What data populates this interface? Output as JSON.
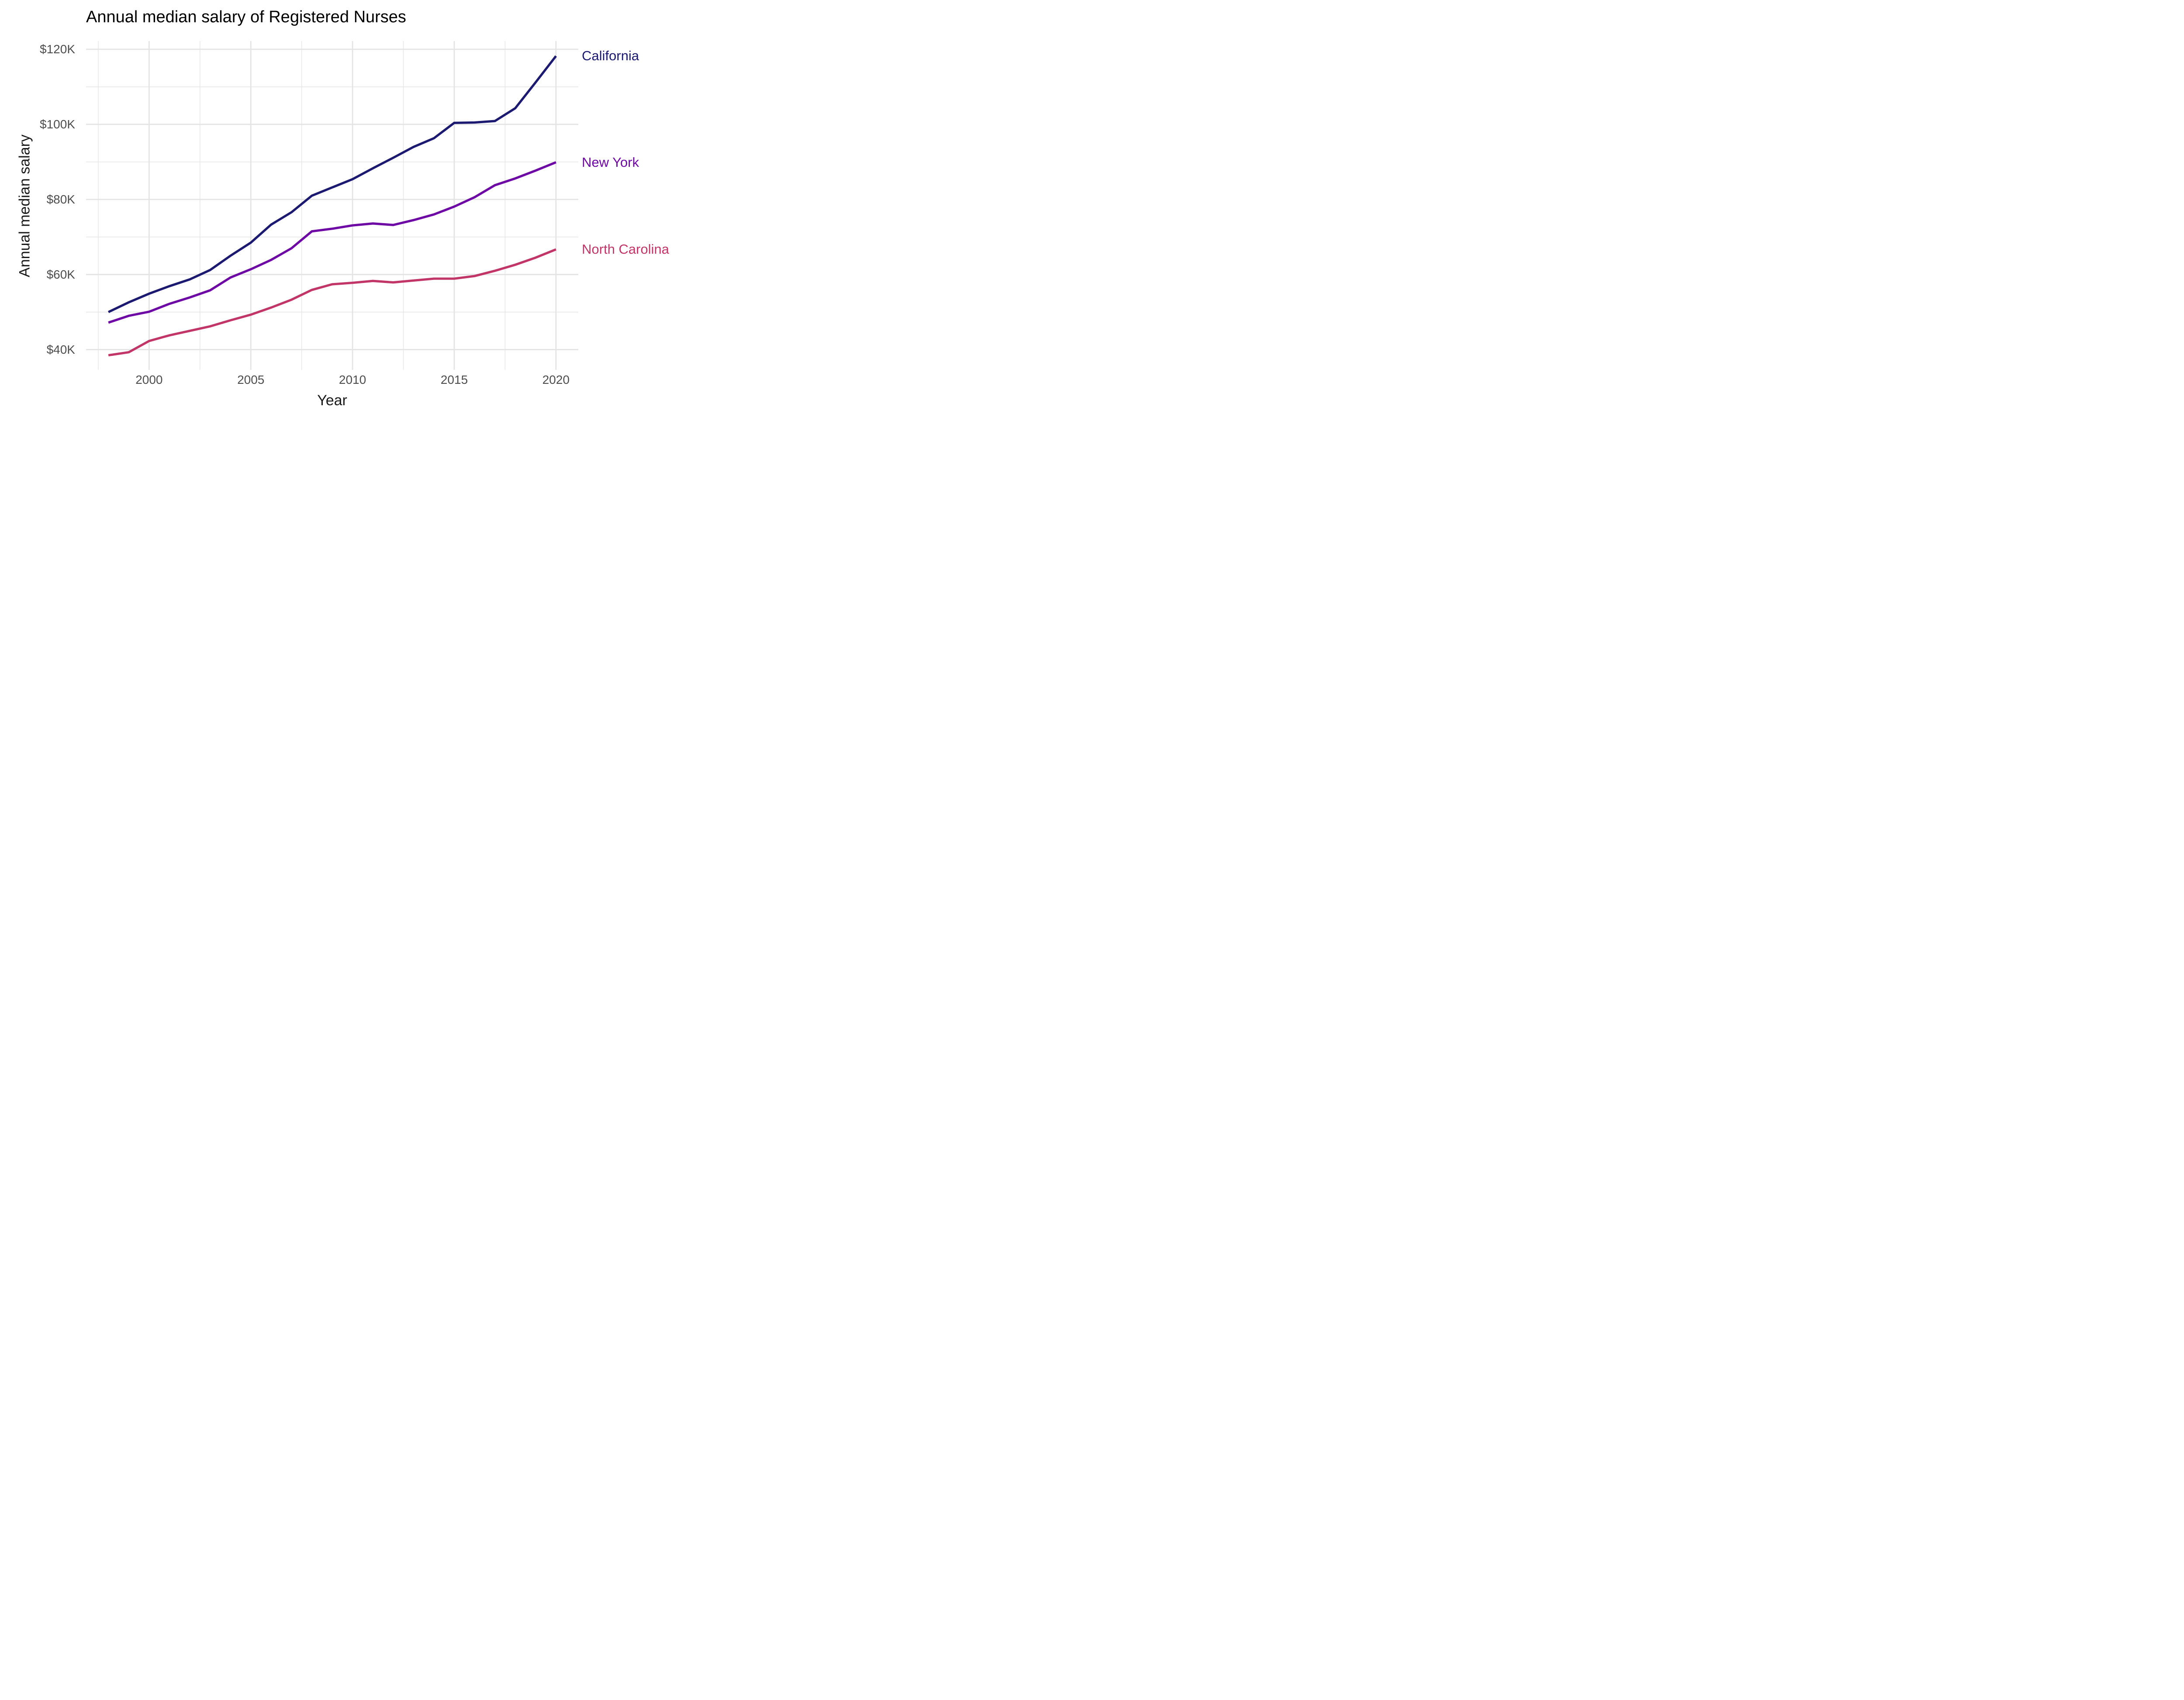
{
  "title": "Annual median salary of Registered Nurses",
  "colors": {
    "grid": "#e4e4e4",
    "tick_text": "#4d4d4d",
    "axis_title_text": "#1a1a1a",
    "title_text": "#000000"
  },
  "chart_data": {
    "type": "line",
    "title": "Annual median salary of Registered Nurses",
    "xlabel": "Year",
    "ylabel": "Annual median salary",
    "legend_position": "right-of-line-ends",
    "grid": true,
    "xlim": [
      1996.9,
      2021.1
    ],
    "ylim_thousands": [
      34.6,
      122.2
    ],
    "x_major_ticks": [
      2000,
      2005,
      2010,
      2015,
      2020
    ],
    "x_tick_labels": [
      "2000",
      "2005",
      "2010",
      "2015",
      "2020"
    ],
    "x_minor_gridlines": [
      1997.5,
      2002.5,
      2007.5,
      2012.5,
      2017.5
    ],
    "y_major_ticks_thousands": [
      40,
      60,
      80,
      100,
      120
    ],
    "y_tick_labels": [
      "$40K",
      "$60K",
      "$80K",
      "$100K",
      "$120K"
    ],
    "y_minor_gridlines_thousands": [
      50,
      70,
      90,
      110
    ],
    "series": [
      {
        "name": "California",
        "color": "#1b1970",
        "values_year_salaryK": [
          [
            1998,
            50.0
          ],
          [
            1999,
            52.6
          ],
          [
            2000,
            54.9
          ],
          [
            2001,
            56.9
          ],
          [
            2002,
            58.7
          ],
          [
            2003,
            61.2
          ],
          [
            2004,
            65.0
          ],
          [
            2005,
            68.5
          ],
          [
            2006,
            73.3
          ],
          [
            2007,
            76.6
          ],
          [
            2008,
            81.0
          ],
          [
            2009,
            83.2
          ],
          [
            2010,
            85.4
          ],
          [
            2011,
            88.3
          ],
          [
            2012,
            91.1
          ],
          [
            2013,
            94.0
          ],
          [
            2014,
            96.3
          ],
          [
            2015,
            100.4
          ],
          [
            2016,
            100.5
          ],
          [
            2017,
            100.9
          ],
          [
            2018,
            104.3
          ],
          [
            2019,
            111.2
          ],
          [
            2020,
            118.2
          ]
        ]
      },
      {
        "name": "New York",
        "color": "#6e08a5",
        "values_year_salaryK": [
          [
            1998,
            47.2
          ],
          [
            1999,
            49.0
          ],
          [
            2000,
            50.1
          ],
          [
            2001,
            52.2
          ],
          [
            2002,
            53.9
          ],
          [
            2003,
            55.8
          ],
          [
            2004,
            59.2
          ],
          [
            2005,
            61.4
          ],
          [
            2006,
            63.9
          ],
          [
            2007,
            67.0
          ],
          [
            2008,
            71.5
          ],
          [
            2009,
            72.2
          ],
          [
            2010,
            73.1
          ],
          [
            2011,
            73.6
          ],
          [
            2012,
            73.2
          ],
          [
            2013,
            74.5
          ],
          [
            2014,
            76.0
          ],
          [
            2015,
            78.1
          ],
          [
            2016,
            80.6
          ],
          [
            2017,
            83.8
          ],
          [
            2018,
            85.6
          ],
          [
            2019,
            87.7
          ],
          [
            2020,
            89.9
          ]
        ]
      },
      {
        "name": "North Carolina",
        "color": "#c13567",
        "values_year_salaryK": [
          [
            1998,
            38.5
          ],
          [
            1999,
            39.3
          ],
          [
            2000,
            42.3
          ],
          [
            2001,
            43.8
          ],
          [
            2002,
            45.0
          ],
          [
            2003,
            46.2
          ],
          [
            2004,
            47.8
          ],
          [
            2005,
            49.3
          ],
          [
            2006,
            51.2
          ],
          [
            2007,
            53.3
          ],
          [
            2008,
            55.9
          ],
          [
            2009,
            57.4
          ],
          [
            2010,
            57.8
          ],
          [
            2011,
            58.3
          ],
          [
            2012,
            57.9
          ],
          [
            2013,
            58.4
          ],
          [
            2014,
            58.9
          ],
          [
            2015,
            58.9
          ],
          [
            2016,
            59.6
          ],
          [
            2017,
            61.0
          ],
          [
            2018,
            62.6
          ],
          [
            2019,
            64.5
          ],
          [
            2020,
            66.7
          ]
        ]
      }
    ]
  }
}
